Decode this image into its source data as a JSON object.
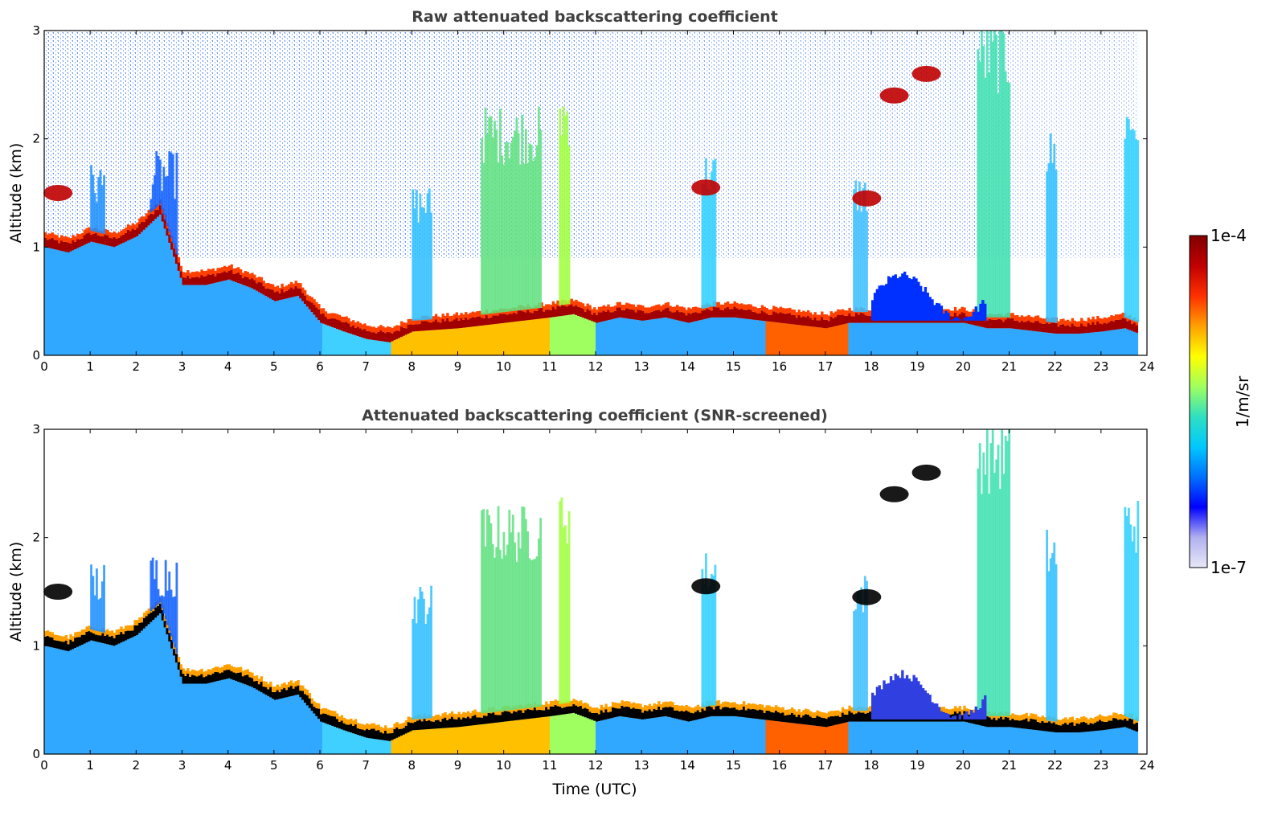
{
  "chart_data": [
    {
      "type": "heatmap",
      "title": "Raw attenuated backscattering coefficient",
      "xlabel": "",
      "ylabel": "Altitude (km)",
      "xlim": [
        0,
        24
      ],
      "ylim": [
        0,
        3
      ],
      "x_ticks": [
        "0",
        "1",
        "2",
        "3",
        "4",
        "5",
        "6",
        "7",
        "8",
        "9",
        "10",
        "11",
        "12",
        "13",
        "14",
        "15",
        "16",
        "17",
        "18",
        "19",
        "20",
        "21",
        "22",
        "23",
        "24"
      ],
      "y_ticks": [
        "0",
        "1",
        "2",
        "3"
      ],
      "cloud_base_km": [
        [
          0,
          1.0
        ],
        [
          0.5,
          0.95
        ],
        [
          1,
          1.05
        ],
        [
          1.5,
          1.0
        ],
        [
          2,
          1.1
        ],
        [
          2.5,
          1.3
        ],
        [
          3,
          0.65
        ],
        [
          3.5,
          0.65
        ],
        [
          4,
          0.7
        ],
        [
          4.5,
          0.62
        ],
        [
          5,
          0.5
        ],
        [
          5.5,
          0.55
        ],
        [
          6,
          0.3
        ],
        [
          6.5,
          0.22
        ],
        [
          7,
          0.15
        ],
        [
          7.5,
          0.12
        ],
        [
          8,
          0.22
        ],
        [
          9,
          0.25
        ],
        [
          10,
          0.3
        ],
        [
          11,
          0.35
        ],
        [
          11.5,
          0.38
        ],
        [
          12,
          0.3
        ],
        [
          12.5,
          0.35
        ],
        [
          13,
          0.32
        ],
        [
          13.5,
          0.35
        ],
        [
          14,
          0.3
        ],
        [
          14.5,
          0.35
        ],
        [
          15,
          0.35
        ],
        [
          16,
          0.3
        ],
        [
          17,
          0.25
        ],
        [
          17.5,
          0.3
        ],
        [
          18,
          0.3
        ],
        [
          19,
          0.3
        ],
        [
          20,
          0.3
        ],
        [
          20.5,
          0.25
        ],
        [
          21,
          0.25
        ],
        [
          22,
          0.2
        ],
        [
          22.5,
          0.2
        ],
        [
          23,
          0.22
        ],
        [
          23.5,
          0.25
        ],
        [
          23.8,
          0.2
        ]
      ]
    },
    {
      "type": "heatmap",
      "title": "Attenuated backscattering coefficient (SNR-screened)",
      "xlabel": "Time (UTC)",
      "ylabel": "Altitude (km)",
      "xlim": [
        0,
        24
      ],
      "ylim": [
        0,
        3
      ],
      "x_ticks": [
        "0",
        "1",
        "2",
        "3",
        "4",
        "5",
        "6",
        "7",
        "8",
        "9",
        "10",
        "11",
        "12",
        "13",
        "14",
        "15",
        "16",
        "17",
        "18",
        "19",
        "20",
        "21",
        "22",
        "23",
        "24"
      ],
      "y_ticks": [
        "0",
        "1",
        "2",
        "3"
      ],
      "cloud_base_km": [
        [
          0,
          1.0
        ],
        [
          0.5,
          0.95
        ],
        [
          1,
          1.05
        ],
        [
          1.5,
          1.0
        ],
        [
          2,
          1.1
        ],
        [
          2.5,
          1.3
        ],
        [
          3,
          0.65
        ],
        [
          3.5,
          0.65
        ],
        [
          4,
          0.7
        ],
        [
          4.5,
          0.62
        ],
        [
          5,
          0.5
        ],
        [
          5.5,
          0.55
        ],
        [
          6,
          0.3
        ],
        [
          6.5,
          0.22
        ],
        [
          7,
          0.15
        ],
        [
          7.5,
          0.12
        ],
        [
          8,
          0.22
        ],
        [
          9,
          0.25
        ],
        [
          10,
          0.3
        ],
        [
          11,
          0.35
        ],
        [
          11.5,
          0.38
        ],
        [
          12,
          0.3
        ],
        [
          12.5,
          0.35
        ],
        [
          13,
          0.32
        ],
        [
          13.5,
          0.35
        ],
        [
          14,
          0.3
        ],
        [
          14.5,
          0.35
        ],
        [
          15,
          0.35
        ],
        [
          16,
          0.3
        ],
        [
          17,
          0.25
        ],
        [
          17.5,
          0.3
        ],
        [
          18,
          0.3
        ],
        [
          19,
          0.3
        ],
        [
          20,
          0.3
        ],
        [
          20.5,
          0.25
        ],
        [
          21,
          0.25
        ],
        [
          22,
          0.2
        ],
        [
          22.5,
          0.2
        ],
        [
          23,
          0.22
        ],
        [
          23.5,
          0.25
        ],
        [
          23.8,
          0.2
        ]
      ]
    }
  ],
  "colorbar": {
    "max_label": "1e-4",
    "min_label": "1e-7",
    "unit_label": "1/m/sr",
    "colormap": [
      "#e8e8f8",
      "#b0b0f0",
      "#0000ff",
      "#0070ff",
      "#00c8ff",
      "#30e0c0",
      "#a0ff60",
      "#ffff00",
      "#ffa000",
      "#ff3000",
      "#c00000",
      "#800000"
    ]
  }
}
